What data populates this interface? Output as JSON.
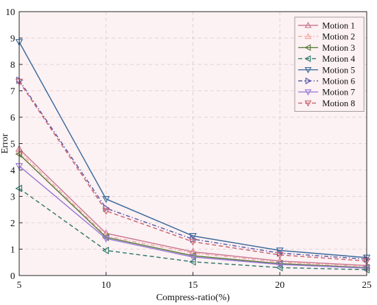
{
  "chart_data": {
    "type": "line",
    "title": "",
    "xlabel": "Compress-ratio(%)",
    "ylabel": "Error",
    "x": [
      5,
      10,
      15,
      20,
      25
    ],
    "xlim": [
      5,
      25
    ],
    "ylim": [
      0,
      10
    ],
    "xticks": [
      5,
      10,
      15,
      20,
      25
    ],
    "yticks": [
      0,
      1,
      2,
      3,
      4,
      5,
      6,
      7,
      8,
      9,
      10
    ],
    "grid": true,
    "legend_position": "top-right",
    "background_color": "#fcf1f3",
    "series": [
      {
        "name": "Motion 1",
        "values": [
          4.8,
          1.6,
          0.9,
          0.55,
          0.38
        ],
        "color": "#c97a93",
        "marker": "triangle-up",
        "dash": "solid"
      },
      {
        "name": "Motion 2",
        "values": [
          4.7,
          1.5,
          0.85,
          0.5,
          0.35
        ],
        "color": "#f2a8a2",
        "marker": "triangle-up",
        "dash": "dashdot"
      },
      {
        "name": "Motion 3",
        "values": [
          4.6,
          1.45,
          0.75,
          0.45,
          0.3
        ],
        "color": "#5a7a3a",
        "marker": "triangle-left",
        "dash": "solid"
      },
      {
        "name": "Motion 4",
        "values": [
          3.3,
          0.95,
          0.52,
          0.3,
          0.22
        ],
        "color": "#2f7a6a",
        "marker": "triangle-left",
        "dash": "dashed"
      },
      {
        "name": "Motion 5",
        "values": [
          8.85,
          2.9,
          1.5,
          0.95,
          0.68
        ],
        "color": "#3a6a9a",
        "marker": "triangle-down",
        "dash": "solid"
      },
      {
        "name": "Motion 6",
        "values": [
          7.4,
          2.55,
          1.38,
          0.85,
          0.62
        ],
        "color": "#5858a8",
        "marker": "triangle-right",
        "dash": "dashdot"
      },
      {
        "name": "Motion 7",
        "values": [
          4.15,
          1.4,
          0.7,
          0.42,
          0.28
        ],
        "color": "#9a7ad8",
        "marker": "triangle-down",
        "dash": "solid"
      },
      {
        "name": "Motion 8",
        "values": [
          7.35,
          2.45,
          1.28,
          0.78,
          0.55
        ],
        "color": "#c9626f",
        "marker": "triangle-down",
        "dash": "dashed"
      }
    ]
  }
}
